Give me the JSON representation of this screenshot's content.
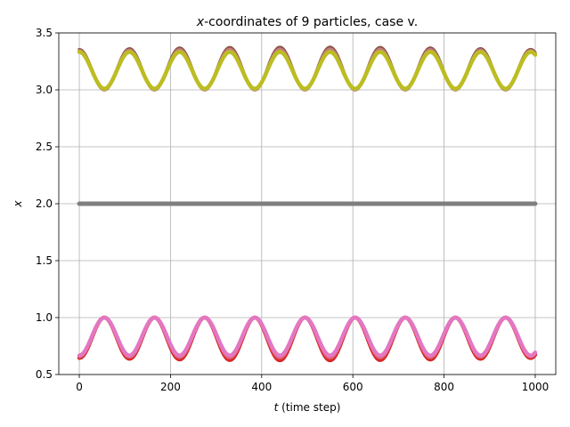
{
  "chart_data": {
    "type": "line",
    "title_prefix": "x",
    "title_suffix": "-coordinates of 9 particles, case v.",
    "xlabel_var": "t",
    "xlabel_rest": " (time step)",
    "ylabel": "x",
    "xlim": [
      -45,
      1045
    ],
    "ylim": [
      0.5,
      3.5
    ],
    "xticks": [
      0,
      200,
      400,
      600,
      800,
      1000
    ],
    "yticks": [
      0.5,
      1.0,
      1.5,
      2.0,
      2.5,
      3.0,
      3.5
    ],
    "xtick_labels": [
      "0",
      "200",
      "400",
      "600",
      "800",
      "1000"
    ],
    "ytick_labels": [
      "0.5",
      "1.0",
      "1.5",
      "2.0",
      "2.5",
      "3.0",
      "3.5"
    ],
    "grid": true,
    "legend": "none",
    "t_range": [
      0,
      1000
    ],
    "series": [
      {
        "base": 3.333,
        "low": 3.0,
        "high_max": 3.375,
        "period": 110,
        "amp_variation": 0.6,
        "color": "#8c564b",
        "width": 3.5
      },
      {
        "base": 3.333,
        "low": 3.0,
        "high_max": 3.36,
        "period": 110,
        "amp_variation": 0.5,
        "color": "#c47c7c",
        "width": 3.0
      },
      {
        "base": 3.333,
        "low": 3.01,
        "high_max": 3.333,
        "period": 110,
        "amp_variation": 0.0,
        "color": "#bcbd22",
        "width": 4.5
      },
      {
        "base": 2.0,
        "low": 2.0,
        "high_max": 2.0,
        "period": 110,
        "amp_variation": 0.0,
        "color": "#7f7f7f",
        "width": 5.0
      },
      {
        "base": 0.667,
        "low": 1.0,
        "high_max": 0.625,
        "period": 110,
        "amp_variation": 0.6,
        "color": "#d62728",
        "width": 4.5
      },
      {
        "base": 0.667,
        "low": 1.0,
        "high_max": 0.645,
        "period": 110,
        "amp_variation": 0.4,
        "color": "#e06070",
        "width": 3.5
      },
      {
        "base": 0.667,
        "low": 1.0,
        "high_max": 0.667,
        "period": 110,
        "amp_variation": 0.0,
        "color": "#e377c2",
        "width": 4.5
      }
    ]
  }
}
